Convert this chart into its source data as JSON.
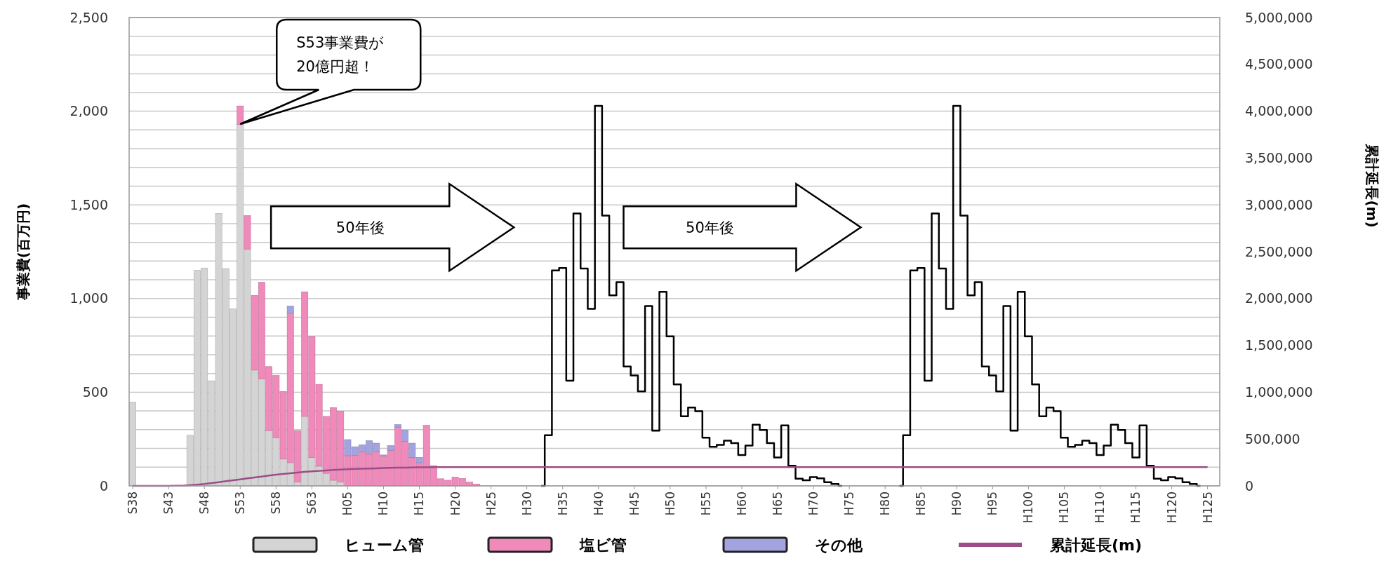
{
  "chart_data": {
    "type": "bar",
    "stacked": true,
    "categories": [
      "S38",
      null,
      null,
      null,
      null,
      "S43",
      null,
      null,
      null,
      null,
      "S48",
      null,
      null,
      null,
      null,
      "S53",
      null,
      null,
      null,
      null,
      "S58",
      null,
      null,
      null,
      null,
      "S63",
      null,
      null,
      null,
      null,
      "H05",
      null,
      null,
      null,
      null,
      "H10",
      null,
      null,
      null,
      null,
      "H15",
      null,
      null,
      null,
      null,
      "H20",
      null,
      null,
      null,
      null,
      "H25",
      null,
      null,
      null,
      null,
      "H30",
      null,
      null,
      null,
      null,
      "H35",
      null,
      null,
      null,
      null,
      "H40",
      null,
      null,
      null,
      null,
      "H45",
      null,
      null,
      null,
      null,
      "H50",
      null,
      null,
      null,
      null,
      "H55",
      null,
      null,
      null,
      null,
      "H60",
      null,
      null,
      null,
      null,
      "H65",
      null,
      null,
      null,
      null,
      "H70",
      null,
      null,
      null,
      null,
      "H75",
      null,
      null,
      null,
      null,
      "H80",
      null,
      null,
      null,
      null,
      "H85",
      null,
      null,
      null,
      null,
      "H90",
      null,
      null,
      null,
      null,
      "H95",
      null,
      null,
      null,
      null,
      "H100",
      null,
      null,
      null,
      null,
      "H105",
      null,
      null,
      null,
      null,
      "H110",
      null,
      null,
      null,
      null,
      "H115",
      null,
      null,
      null,
      null,
      "H120",
      null,
      null,
      null,
      null,
      "H125"
    ],
    "series": [
      {
        "name": "ヒューム管",
        "color": "#d4d4d4",
        "values": [
          447,
          0,
          0,
          0,
          0,
          0,
          0,
          0,
          270,
          1150,
          1163,
          561,
          1454,
          1160,
          945,
          1930,
          1264,
          618,
          570,
          295,
          257,
          143,
          124,
          20,
          371,
          152,
          105,
          67,
          30,
          20,
          null,
          0,
          0,
          0,
          0,
          0,
          0,
          0,
          0,
          0,
          0,
          0,
          0,
          0,
          0,
          0,
          0,
          0,
          0,
          null,
          null,
          null,
          null,
          null,
          null,
          null,
          null,
          null,
          null,
          null,
          null,
          null,
          null,
          null,
          null,
          null,
          null,
          null,
          null,
          null,
          null,
          null,
          null,
          null,
          null,
          null,
          null,
          null,
          null,
          null,
          null,
          null,
          null,
          null,
          null,
          null,
          null,
          null,
          null,
          null,
          null,
          null,
          null,
          null,
          null,
          null,
          null,
          null,
          null,
          null,
          null,
          null,
          null,
          null,
          null,
          null,
          null,
          null,
          null,
          null,
          null,
          null,
          null,
          null,
          null,
          null,
          null,
          null,
          null,
          null,
          null,
          null,
          null,
          null,
          null,
          null,
          null,
          null,
          null,
          null,
          null,
          null,
          null,
          null,
          null,
          null,
          null,
          null,
          null,
          null,
          null,
          null,
          null,
          null,
          null,
          null,
          null,
          null,
          null,
          null,
          null
        ]
      },
      {
        "name": "塩ビ管",
        "color": "#ef8abb",
        "values": [
          0,
          0,
          0,
          0,
          0,
          0,
          0,
          0,
          0,
          0,
          0,
          0,
          0,
          0,
          0,
          98,
          179,
          399,
          517,
          342,
          332,
          361,
          798,
          275,
          665,
          646,
          437,
          304,
          388,
          379,
          161,
          162,
          181,
          171,
          181,
          160,
          190,
          314,
          238,
          152,
          124,
          323,
          108,
          38,
          30,
          47,
          40,
          20,
          10,
          null,
          null,
          null,
          null,
          null,
          null,
          null,
          null,
          null,
          null,
          null,
          null,
          null,
          null,
          null,
          null,
          null,
          null,
          null,
          null,
          null,
          null,
          null,
          null,
          null,
          null,
          null,
          null,
          null,
          null,
          null,
          null,
          null,
          null,
          null,
          null,
          null,
          null,
          null,
          null,
          null,
          null,
          null,
          null,
          null,
          null,
          null,
          null,
          null,
          null,
          null,
          null,
          null,
          null,
          null,
          null,
          null,
          null,
          null,
          null,
          null,
          null,
          null,
          null,
          null,
          null,
          null,
          null,
          null,
          null,
          null,
          null,
          null,
          null,
          null,
          null,
          null,
          null,
          null,
          null,
          null,
          null,
          null,
          null,
          null,
          null,
          null,
          null,
          null,
          null,
          null,
          null,
          null,
          null,
          null,
          null,
          null,
          null,
          null,
          null,
          null,
          null
        ]
      },
      {
        "name": "その他",
        "color": "#a3a3e0",
        "values": [
          0,
          0,
          0,
          0,
          0,
          0,
          0,
          0,
          0,
          0,
          0,
          0,
          0,
          0,
          0,
          0,
          0,
          0,
          0,
          0,
          0,
          0,
          38,
          0,
          0,
          0,
          0,
          0,
          0,
          0,
          86,
          47,
          38,
          70,
          47,
          5,
          25,
          13,
          60,
          76,
          28,
          0,
          0,
          0,
          0,
          0,
          0,
          0,
          0,
          null,
          null,
          null,
          null,
          null,
          null,
          null,
          null,
          null,
          null,
          null,
          null,
          null,
          null,
          null,
          null,
          null,
          null,
          null,
          null,
          null,
          null,
          null,
          null,
          null,
          null,
          null,
          null,
          null,
          null,
          null,
          null,
          null,
          null,
          null,
          null,
          null,
          null,
          null,
          null,
          null,
          null,
          null,
          null,
          null,
          null,
          null,
          null,
          null,
          null,
          null,
          null,
          null,
          null,
          null,
          null,
          null,
          null,
          null,
          null,
          null,
          null,
          null,
          null,
          null,
          null,
          null,
          null,
          null,
          null,
          null,
          null,
          null,
          null,
          null,
          null,
          null,
          null,
          null,
          null,
          null,
          null,
          null,
          null,
          null,
          null,
          null,
          null,
          null,
          null,
          null,
          null,
          null,
          null,
          null,
          null,
          null,
          null,
          null,
          null,
          null,
          null
        ]
      },
      {
        "type": "step",
        "color": "#000000",
        "values": [
          null,
          null,
          null,
          null,
          null,
          null,
          null,
          null,
          null,
          null,
          null,
          null,
          null,
          null,
          null,
          null,
          null,
          null,
          null,
          null,
          null,
          null,
          null,
          null,
          null,
          null,
          null,
          null,
          null,
          null,
          null,
          null,
          null,
          null,
          null,
          null,
          null,
          null,
          null,
          null,
          null,
          null,
          null,
          null,
          null,
          null,
          null,
          null,
          null,
          null,
          null,
          null,
          null,
          null,
          null,
          null,
          null,
          0,
          270,
          1150,
          1163,
          561,
          1454,
          1160,
          945,
          2028,
          1443,
          1017,
          1087,
          637,
          589,
          504,
          960,
          295,
          1036,
          798,
          542,
          371,
          418,
          399,
          257,
          209,
          219,
          241,
          228,
          165,
          215,
          327,
          298,
          228,
          152,
          323,
          108,
          38,
          30,
          47,
          40,
          20,
          10,
          0,
          null,
          null,
          null,
          null,
          null,
          null,
          null,
          null,
          null,
          null,
          null,
          null,
          null,
          null,
          null,
          null,
          null,
          null,
          null,
          null,
          null,
          null,
          null,
          null,
          null,
          null,
          null,
          null,
          null,
          null,
          null,
          null,
          null,
          null,
          null,
          null,
          null,
          null,
          null,
          null,
          null,
          null,
          null,
          null,
          null,
          null,
          null,
          null,
          null,
          null,
          null
        ]
      },
      {
        "type": "step",
        "color": "#000000",
        "values": [
          null,
          null,
          null,
          null,
          null,
          null,
          null,
          null,
          null,
          null,
          null,
          null,
          null,
          null,
          null,
          null,
          null,
          null,
          null,
          null,
          null,
          null,
          null,
          null,
          null,
          null,
          null,
          null,
          null,
          null,
          null,
          null,
          null,
          null,
          null,
          null,
          null,
          null,
          null,
          null,
          null,
          null,
          null,
          null,
          null,
          null,
          null,
          null,
          null,
          null,
          null,
          null,
          null,
          null,
          null,
          null,
          null,
          null,
          null,
          null,
          null,
          null,
          null,
          null,
          null,
          null,
          null,
          null,
          null,
          null,
          null,
          null,
          null,
          null,
          null,
          null,
          null,
          null,
          null,
          null,
          null,
          null,
          null,
          null,
          null,
          null,
          null,
          null,
          null,
          null,
          null,
          null,
          null,
          null,
          null,
          null,
          null,
          null,
          null,
          null,
          null,
          null,
          null,
          null,
          null,
          null,
          null,
          0,
          270,
          1150,
          1163,
          561,
          1454,
          1160,
          945,
          2028,
          1443,
          1017,
          1087,
          637,
          589,
          504,
          960,
          295,
          1036,
          798,
          542,
          371,
          418,
          399,
          257,
          209,
          219,
          241,
          228,
          165,
          215,
          327,
          298,
          228,
          152,
          323,
          108,
          38,
          30,
          47,
          40,
          20,
          10,
          0,
          null
        ]
      },
      {
        "name": "累計延長(m)",
        "type": "line",
        "axis": "y2",
        "color": "#9c4d87",
        "values": [
          0,
          0,
          0,
          0,
          0,
          0,
          1000,
          2000,
          8000,
          14000,
          20000,
          30000,
          40000,
          50000,
          60000,
          70000,
          80000,
          90000,
          100000,
          110000,
          120000,
          128000,
          135000,
          142000,
          149000,
          155000,
          160000,
          165000,
          170000,
          174000,
          178000,
          181000,
          183000,
          186000,
          188000,
          190000,
          192000,
          194000,
          195000,
          197000,
          198000,
          199000,
          200000,
          200000,
          200000,
          200000,
          200000,
          200000,
          200000,
          200000,
          200000,
          200000,
          200000,
          200000,
          200000,
          200000,
          200000,
          200000,
          200000,
          200000,
          200000,
          200000,
          200000,
          200000,
          200000,
          200000,
          200000,
          200000,
          200000,
          200000,
          200000,
          200000,
          200000,
          200000,
          200000,
          200000,
          200000,
          200000,
          200000,
          200000,
          200000,
          200000,
          200000,
          200000,
          200000,
          200000,
          200000,
          200000,
          200000,
          200000,
          200000,
          200000,
          200000,
          200000,
          200000,
          200000,
          200000,
          200000,
          200000,
          200000,
          200000,
          200000,
          200000,
          200000,
          200000,
          200000,
          200000,
          200000,
          200000,
          200000,
          200000,
          200000,
          200000,
          200000,
          200000,
          200000,
          200000,
          200000,
          200000,
          200000,
          200000,
          200000,
          200000,
          200000,
          200000,
          200000,
          200000,
          200000,
          200000,
          200000,
          200000,
          200000,
          200000,
          200000,
          200000,
          200000,
          200000,
          200000,
          200000,
          200000,
          200000,
          200000,
          200000,
          200000,
          200000,
          200000,
          200000,
          200000,
          200000,
          200000,
          200000
        ]
      }
    ],
    "ylim": [
      0,
      2500
    ],
    "yticks": [
      0,
      {
        "value": 100,
        "label": null
      },
      {
        "value": 200,
        "label": null
      },
      {
        "value": 300,
        "label": null
      },
      {
        "value": 400,
        "label": null
      },
      500,
      {
        "value": 600,
        "label": null
      },
      {
        "value": 700,
        "label": null
      },
      {
        "value": 800,
        "label": null
      },
      {
        "value": 900,
        "label": null
      },
      {
        "value": 1000,
        "label": "1,000"
      },
      {
        "value": 1100,
        "label": null
      },
      {
        "value": 1200,
        "label": null
      },
      {
        "value": 1300,
        "label": null
      },
      {
        "value": 1400,
        "label": null
      },
      {
        "value": 1500,
        "label": "1,500"
      },
      {
        "value": 1600,
        "label": null
      },
      {
        "value": 1700,
        "label": null
      },
      {
        "value": 1800,
        "label": null
      },
      {
        "value": 1900,
        "label": null
      },
      {
        "value": 2000,
        "label": "2,000"
      },
      {
        "value": 2100,
        "label": null
      },
      {
        "value": 2200,
        "label": null
      },
      {
        "value": 2300,
        "label": null
      },
      {
        "value": 2400,
        "label": null
      },
      {
        "value": 2500,
        "label": "2,500"
      }
    ],
    "y2lim": [
      0,
      5000000
    ],
    "y2ticks": [
      0,
      {
        "value": 500000,
        "label": "500,000"
      },
      {
        "value": 1000000,
        "label": "1,000,000"
      },
      {
        "value": 1500000,
        "label": "1,500,000"
      },
      {
        "value": 2000000,
        "label": "2,000,000"
      },
      {
        "value": 2500000,
        "label": "2,500,000"
      },
      {
        "value": 3000000,
        "label": "3,000,000"
      },
      {
        "value": 3500000,
        "label": "3,500,000"
      },
      {
        "value": 4000000,
        "label": "4,000,000"
      },
      {
        "value": 4500000,
        "label": "4,500,000"
      },
      {
        "value": 5000000,
        "label": "5,000,000"
      }
    ],
    "ylabel": "事業費(百万円)",
    "y2label": "累計延長(m)",
    "grid": "y",
    "legend": "bottom",
    "annotations": [
      "S53事業費が\n20億円超！",
      "50年後",
      "50年後"
    ]
  }
}
